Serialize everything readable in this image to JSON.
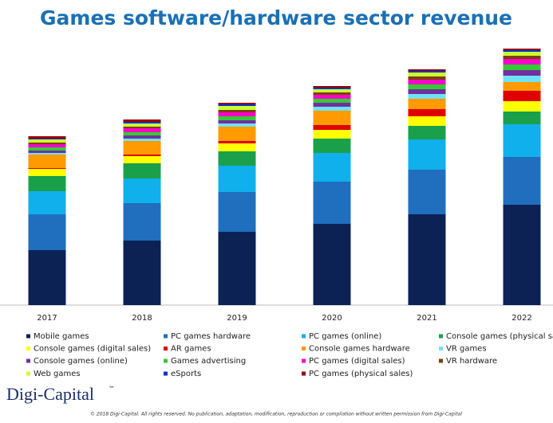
{
  "chart_data": {
    "type": "stacked-bar",
    "title": "Games software/hardware sector revenue",
    "categories": [
      "2017",
      "2018",
      "2019",
      "2020",
      "2021",
      "2022"
    ],
    "ylim": [
      0,
      330
    ],
    "series": [
      {
        "name": "Mobile games",
        "color": "#0c2255",
        "values": [
          69,
          81,
          92,
          102,
          114,
          126
        ]
      },
      {
        "name": "PC games hardware",
        "color": "#1f6fbe",
        "values": [
          45,
          47,
          50,
          53,
          56,
          60
        ]
      },
      {
        "name": "PC games (online)",
        "color": "#10b0ec",
        "values": [
          29,
          31,
          33,
          36,
          38,
          41
        ]
      },
      {
        "name": "Console games (physical sales)",
        "color": "#1aa04a",
        "values": [
          19,
          19,
          18,
          18,
          17,
          16
        ]
      },
      {
        "name": "Console games (digital sales)",
        "color": "#ffff00",
        "values": [
          9,
          9,
          10,
          11,
          12,
          13
        ]
      },
      {
        "name": "AR games",
        "color": "#e00000",
        "values": [
          1,
          2,
          3,
          6,
          9,
          13
        ]
      },
      {
        "name": "Console games hardware",
        "color": "#ff9a00",
        "values": [
          17,
          17,
          18,
          18,
          13,
          11
        ]
      },
      {
        "name": "VR games",
        "color": "#6fe3f3",
        "values": [
          2,
          3,
          4,
          5,
          6,
          8
        ]
      },
      {
        "name": "Console games (online)",
        "color": "#7030a0",
        "values": [
          3,
          4,
          4,
          5,
          6,
          7
        ]
      },
      {
        "name": "Games advertising",
        "color": "#33cc33",
        "values": [
          4,
          4,
          5,
          5,
          6,
          7
        ]
      },
      {
        "name": "PC games (digital sales)",
        "color": "#ff00cc",
        "values": [
          4,
          5,
          5,
          5,
          6,
          7
        ]
      },
      {
        "name": "VR hardware",
        "color": "#7b3f00",
        "values": [
          2,
          2,
          3,
          3,
          4,
          4
        ]
      },
      {
        "name": "Web games",
        "color": "#ccff33",
        "values": [
          4,
          4,
          5,
          4,
          5,
          5
        ]
      },
      {
        "name": "eSports",
        "color": "#0033cc",
        "values": [
          1,
          2,
          2,
          2,
          2,
          2
        ]
      },
      {
        "name": "PC games (physical sales)",
        "color": "#990000",
        "values": [
          3,
          3,
          2,
          2,
          2,
          2
        ]
      }
    ]
  },
  "footer": {
    "logo": "Digi-Capital",
    "trademark": "™",
    "copyright": "© 2018 Digi-Capital. All rights reserved. No publication, adaptation, modification, reproduction or compilation without written permission from Digi-Capital"
  }
}
